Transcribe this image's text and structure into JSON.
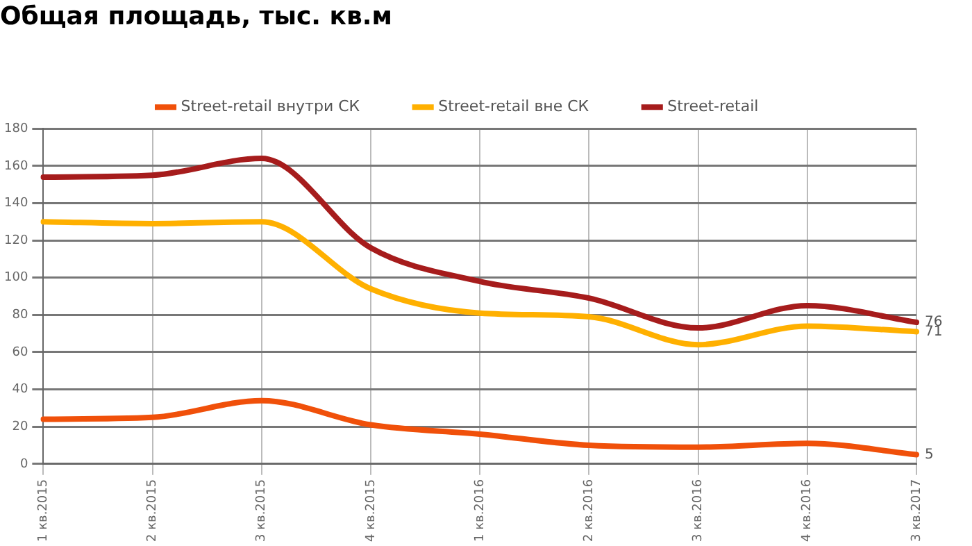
{
  "chart_data": {
    "type": "line",
    "title": "Общая площадь, тыс. кв.м",
    "categories": [
      "1 кв.2015",
      "2 кв.2015",
      "3 кв.2015",
      "4 кв.2015",
      "1 кв.2016",
      "2 кв.2016",
      "3 кв.2016",
      "4 кв.2016",
      "3 кв.2017"
    ],
    "series": [
      {
        "name": "Street-retail внутри СК",
        "color": "#f0500a",
        "values": [
          24,
          25,
          34,
          21,
          16,
          10,
          9,
          11,
          5
        ],
        "value_labels": [
          null,
          null,
          null,
          null,
          null,
          null,
          null,
          null,
          "5"
        ]
      },
      {
        "name": "Street-retail вне СК",
        "color": "#ffb000",
        "values": [
          130,
          129,
          130,
          94,
          81,
          79,
          64,
          74,
          71
        ],
        "value_labels": [
          null,
          null,
          null,
          null,
          null,
          null,
          null,
          null,
          "71"
        ]
      },
      {
        "name": "Street-retail",
        "color": "#a61c1c",
        "values": [
          154,
          155,
          164,
          116,
          98,
          89,
          73,
          85,
          76
        ],
        "value_labels": [
          null,
          null,
          null,
          null,
          null,
          null,
          null,
          null,
          "76"
        ]
      }
    ],
    "ylim": [
      0,
      180
    ],
    "yticks": [
      0,
      20,
      40,
      60,
      80,
      100,
      120,
      140,
      160,
      180
    ],
    "grid": true,
    "legend": "top",
    "marker": "none",
    "line_style": "solid"
  }
}
